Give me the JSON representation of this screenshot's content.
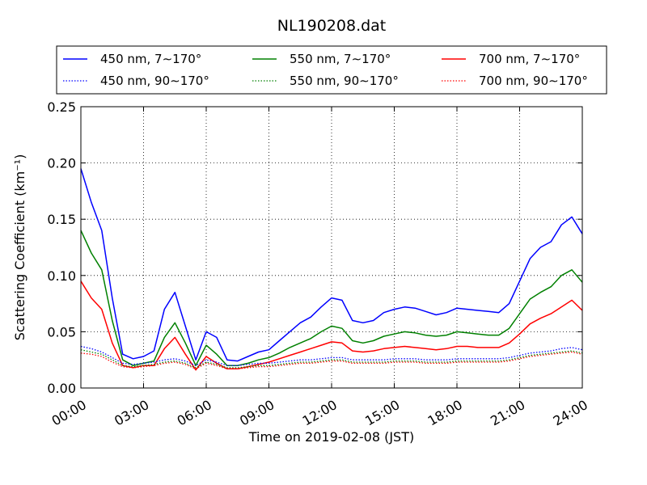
{
  "chart_data": {
    "type": "line",
    "title": "NL190208.dat",
    "xlabel": "Time on 2019-02-08 (JST)",
    "ylabel": "Scattering Coefficient (km⁻¹)",
    "xlim": [
      "00:00",
      "24:00"
    ],
    "ylim": [
      0,
      0.25
    ],
    "x_ticks": [
      "00:00",
      "03:00",
      "06:00",
      "09:00",
      "12:00",
      "15:00",
      "18:00",
      "21:00",
      "24:00"
    ],
    "y_ticks": [
      "0.00",
      "0.05",
      "0.10",
      "0.15",
      "0.20",
      "0.25"
    ],
    "grid": true,
    "legend_position": "top",
    "x": [
      "00:00",
      "00:30",
      "01:00",
      "01:30",
      "02:00",
      "02:30",
      "03:00",
      "03:30",
      "04:00",
      "04:30",
      "05:00",
      "05:30",
      "06:00",
      "06:30",
      "07:00",
      "07:30",
      "08:00",
      "08:30",
      "09:00",
      "09:30",
      "10:00",
      "10:30",
      "11:00",
      "11:30",
      "12:00",
      "12:30",
      "13:00",
      "13:30",
      "14:00",
      "14:30",
      "15:00",
      "15:30",
      "16:00",
      "16:30",
      "17:00",
      "17:30",
      "18:00",
      "18:30",
      "19:00",
      "19:30",
      "20:00",
      "20:30",
      "21:00",
      "21:30",
      "22:00",
      "22:30",
      "23:00",
      "23:30",
      "24:00"
    ],
    "series": [
      {
        "name": "450 nm, 7∼170°",
        "color": "#0000ff",
        "style": "solid",
        "values": [
          0.195,
          0.165,
          0.14,
          0.08,
          0.03,
          0.026,
          0.028,
          0.033,
          0.07,
          0.085,
          0.055,
          0.025,
          0.05,
          0.045,
          0.025,
          0.024,
          0.028,
          0.032,
          0.034,
          0.042,
          0.05,
          0.058,
          0.063,
          0.072,
          0.08,
          0.078,
          0.06,
          0.058,
          0.06,
          0.067,
          0.07,
          0.072,
          0.071,
          0.068,
          0.065,
          0.067,
          0.071,
          0.07,
          0.069,
          0.068,
          0.067,
          0.075,
          0.095,
          0.115,
          0.125,
          0.13,
          0.145,
          0.152,
          0.137
        ]
      },
      {
        "name": "550 nm, 7∼170°",
        "color": "#008000",
        "style": "solid",
        "values": [
          0.14,
          0.12,
          0.105,
          0.06,
          0.025,
          0.02,
          0.022,
          0.024,
          0.045,
          0.058,
          0.04,
          0.02,
          0.038,
          0.03,
          0.02,
          0.02,
          0.022,
          0.025,
          0.027,
          0.031,
          0.036,
          0.04,
          0.044,
          0.05,
          0.055,
          0.053,
          0.042,
          0.04,
          0.042,
          0.046,
          0.048,
          0.05,
          0.049,
          0.047,
          0.046,
          0.047,
          0.05,
          0.049,
          0.048,
          0.047,
          0.047,
          0.053,
          0.066,
          0.079,
          0.085,
          0.09,
          0.1,
          0.105,
          0.094
        ]
      },
      {
        "name": "700 nm, 7∼170°",
        "color": "#ff0000",
        "style": "solid",
        "values": [
          0.095,
          0.08,
          0.07,
          0.04,
          0.02,
          0.018,
          0.02,
          0.02,
          0.035,
          0.045,
          0.03,
          0.016,
          0.028,
          0.022,
          0.017,
          0.017,
          0.019,
          0.021,
          0.023,
          0.026,
          0.029,
          0.032,
          0.035,
          0.038,
          0.041,
          0.04,
          0.033,
          0.032,
          0.033,
          0.035,
          0.036,
          0.037,
          0.036,
          0.035,
          0.034,
          0.035,
          0.037,
          0.037,
          0.036,
          0.036,
          0.036,
          0.04,
          0.048,
          0.057,
          0.062,
          0.066,
          0.072,
          0.078,
          0.069
        ]
      },
      {
        "name": "450 nm, 90∼170°",
        "color": "#0000ff",
        "style": "dotted",
        "values": [
          0.037,
          0.035,
          0.032,
          0.027,
          0.022,
          0.021,
          0.022,
          0.023,
          0.025,
          0.026,
          0.024,
          0.02,
          0.025,
          0.023,
          0.02,
          0.02,
          0.021,
          0.022,
          0.022,
          0.023,
          0.024,
          0.025,
          0.025,
          0.026,
          0.027,
          0.027,
          0.025,
          0.025,
          0.025,
          0.025,
          0.026,
          0.026,
          0.026,
          0.025,
          0.025,
          0.025,
          0.026,
          0.026,
          0.026,
          0.026,
          0.026,
          0.027,
          0.029,
          0.031,
          0.032,
          0.033,
          0.035,
          0.036,
          0.034
        ]
      },
      {
        "name": "550 nm, 90∼170°",
        "color": "#008000",
        "style": "dotted",
        "values": [
          0.034,
          0.032,
          0.03,
          0.025,
          0.02,
          0.019,
          0.02,
          0.021,
          0.023,
          0.024,
          0.022,
          0.018,
          0.023,
          0.021,
          0.018,
          0.018,
          0.019,
          0.02,
          0.02,
          0.021,
          0.022,
          0.023,
          0.023,
          0.024,
          0.025,
          0.025,
          0.023,
          0.023,
          0.023,
          0.023,
          0.024,
          0.024,
          0.024,
          0.023,
          0.023,
          0.023,
          0.024,
          0.024,
          0.024,
          0.024,
          0.024,
          0.025,
          0.027,
          0.029,
          0.03,
          0.031,
          0.032,
          0.033,
          0.031
        ]
      },
      {
        "name": "700 nm, 90∼170°",
        "color": "#ff0000",
        "style": "dotted",
        "values": [
          0.031,
          0.03,
          0.028,
          0.023,
          0.019,
          0.018,
          0.019,
          0.02,
          0.022,
          0.023,
          0.021,
          0.017,
          0.022,
          0.02,
          0.017,
          0.017,
          0.018,
          0.019,
          0.019,
          0.02,
          0.021,
          0.022,
          0.022,
          0.023,
          0.024,
          0.024,
          0.022,
          0.022,
          0.022,
          0.022,
          0.023,
          0.023,
          0.023,
          0.022,
          0.022,
          0.022,
          0.023,
          0.023,
          0.023,
          0.023,
          0.023,
          0.024,
          0.026,
          0.028,
          0.029,
          0.03,
          0.031,
          0.032,
          0.03
        ]
      }
    ]
  }
}
